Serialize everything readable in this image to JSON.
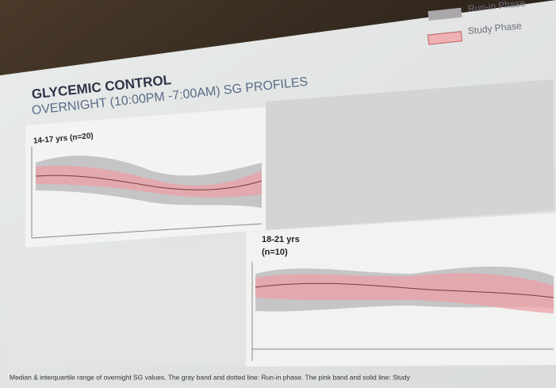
{
  "legend": {
    "items": [
      "Run-in Phase",
      "Study Phase"
    ]
  },
  "header": {
    "title": "GLYCEMIC CONTROL",
    "subtitle": "OVERNIGHT (10:00PM -7:00AM) SG PROFILES"
  },
  "panels": [
    {
      "label": "14-17 yrs (n=20)"
    },
    {
      "label": "18-21 yrs",
      "sublabel": "(n=10)"
    }
  ],
  "caption": "Median & interquartile range of overnight SG values. The gray band and dotted line: Run-in phase.  The pink band and solid line: Study"
}
